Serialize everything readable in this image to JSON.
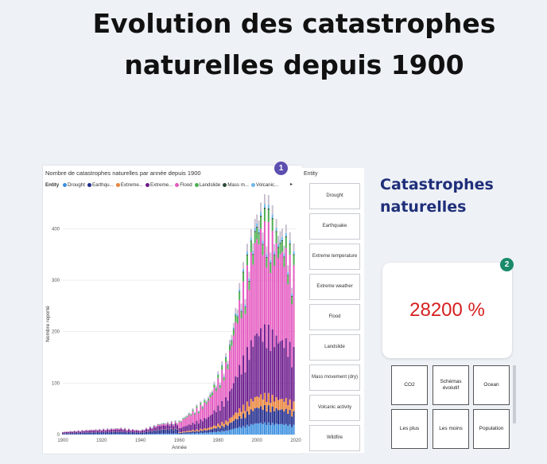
{
  "page_title": "Evolution des catastrophes naturelles depuis 1900",
  "chart": {
    "title": "Nombre de catastrophes naturelles par année depuis 1900",
    "legend_label": "Entity",
    "legend_items": [
      {
        "label": "Drought",
        "color": "#3b8fe0"
      },
      {
        "label": "Earthqu...",
        "color": "#1f2a8c"
      },
      {
        "label": "Extreme...",
        "color": "#e8833a"
      },
      {
        "label": "Extreme...",
        "color": "#6b1a8c"
      },
      {
        "label": "Flood",
        "color": "#e45ac0"
      },
      {
        "label": "Landslide",
        "color": "#4caf50"
      },
      {
        "label": "Mass m...",
        "color": "#2e4a3a"
      },
      {
        "label": "Volcanic...",
        "color": "#6fb8e8"
      }
    ],
    "legend_more_icon": "caret-right-icon",
    "badge": "1"
  },
  "chart_data": {
    "type": "bar",
    "stacked": true,
    "xlabel": "Année",
    "ylabel": "Nombre reporté",
    "xlim": [
      1900,
      2020
    ],
    "ylim": [
      0,
      430
    ],
    "x_ticks": [
      1900,
      1920,
      1940,
      1960,
      1980,
      2000,
      2020
    ],
    "y_ticks": [
      0,
      100,
      200,
      300,
      400
    ],
    "grid": true,
    "legend_position": "top",
    "series_order": [
      "Drought",
      "Earthquake",
      "Extreme temperature",
      "Extreme weather",
      "Flood",
      "Landslide",
      "Mass movement (dry)",
      "Volcanic activity",
      "Wildfire"
    ],
    "colors": [
      "#3b8fe0",
      "#1f2a8c",
      "#e8833a",
      "#6b1a8c",
      "#e45ac0",
      "#4caf50",
      "#2e4a3a",
      "#6fb8e8",
      "#c9bfd0"
    ],
    "x": [
      1900,
      1910,
      1920,
      1930,
      1940,
      1950,
      1960,
      1965,
      1970,
      1975,
      1980,
      1985,
      1990,
      1995,
      2000,
      2005,
      2010,
      2015,
      2019
    ],
    "totals": [
      5,
      8,
      10,
      12,
      8,
      20,
      25,
      40,
      55,
      70,
      110,
      150,
      250,
      330,
      410,
      420,
      385,
      370,
      330
    ]
  },
  "entity_slicer": {
    "title": "Entity",
    "items": [
      "Drought",
      "Earthquake",
      "Extreme temperature",
      "Extreme weather",
      "Flood",
      "Landslide",
      "Mass movement (dry)",
      "Volcanic activity",
      "Wildfire"
    ]
  },
  "side_title": "Catastrophes naturelles",
  "kpi": {
    "value": "28200 %",
    "badge": "2"
  },
  "nav_buttons": [
    "CO2",
    "Schémas évolutif",
    "Ocean",
    "Les plus",
    "Les moins",
    "Population"
  ]
}
